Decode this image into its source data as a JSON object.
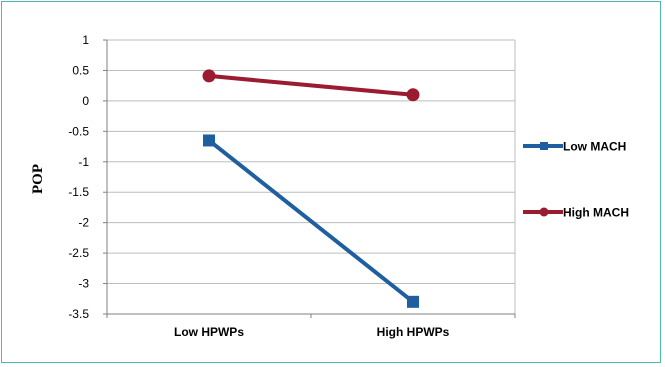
{
  "chart_data": {
    "type": "line",
    "categories": [
      "Low HPWPs",
      "High HPWPs"
    ],
    "series": [
      {
        "name": "Low MACH",
        "values": [
          -0.65,
          -3.3
        ],
        "color": "#1f5fa0",
        "marker": "square"
      },
      {
        "name": "High MACH",
        "values": [
          0.41,
          0.1
        ],
        "color": "#9b1b30",
        "marker": "circle"
      }
    ],
    "ylabel": "POP",
    "ylim": [
      -3.5,
      1
    ],
    "yticks": [
      "1",
      "0.5",
      "0",
      "-0.5",
      "-1",
      "-1.5",
      "-2",
      "-2.5",
      "-3",
      "-3.5"
    ],
    "grid": true,
    "legend_position": "right"
  }
}
